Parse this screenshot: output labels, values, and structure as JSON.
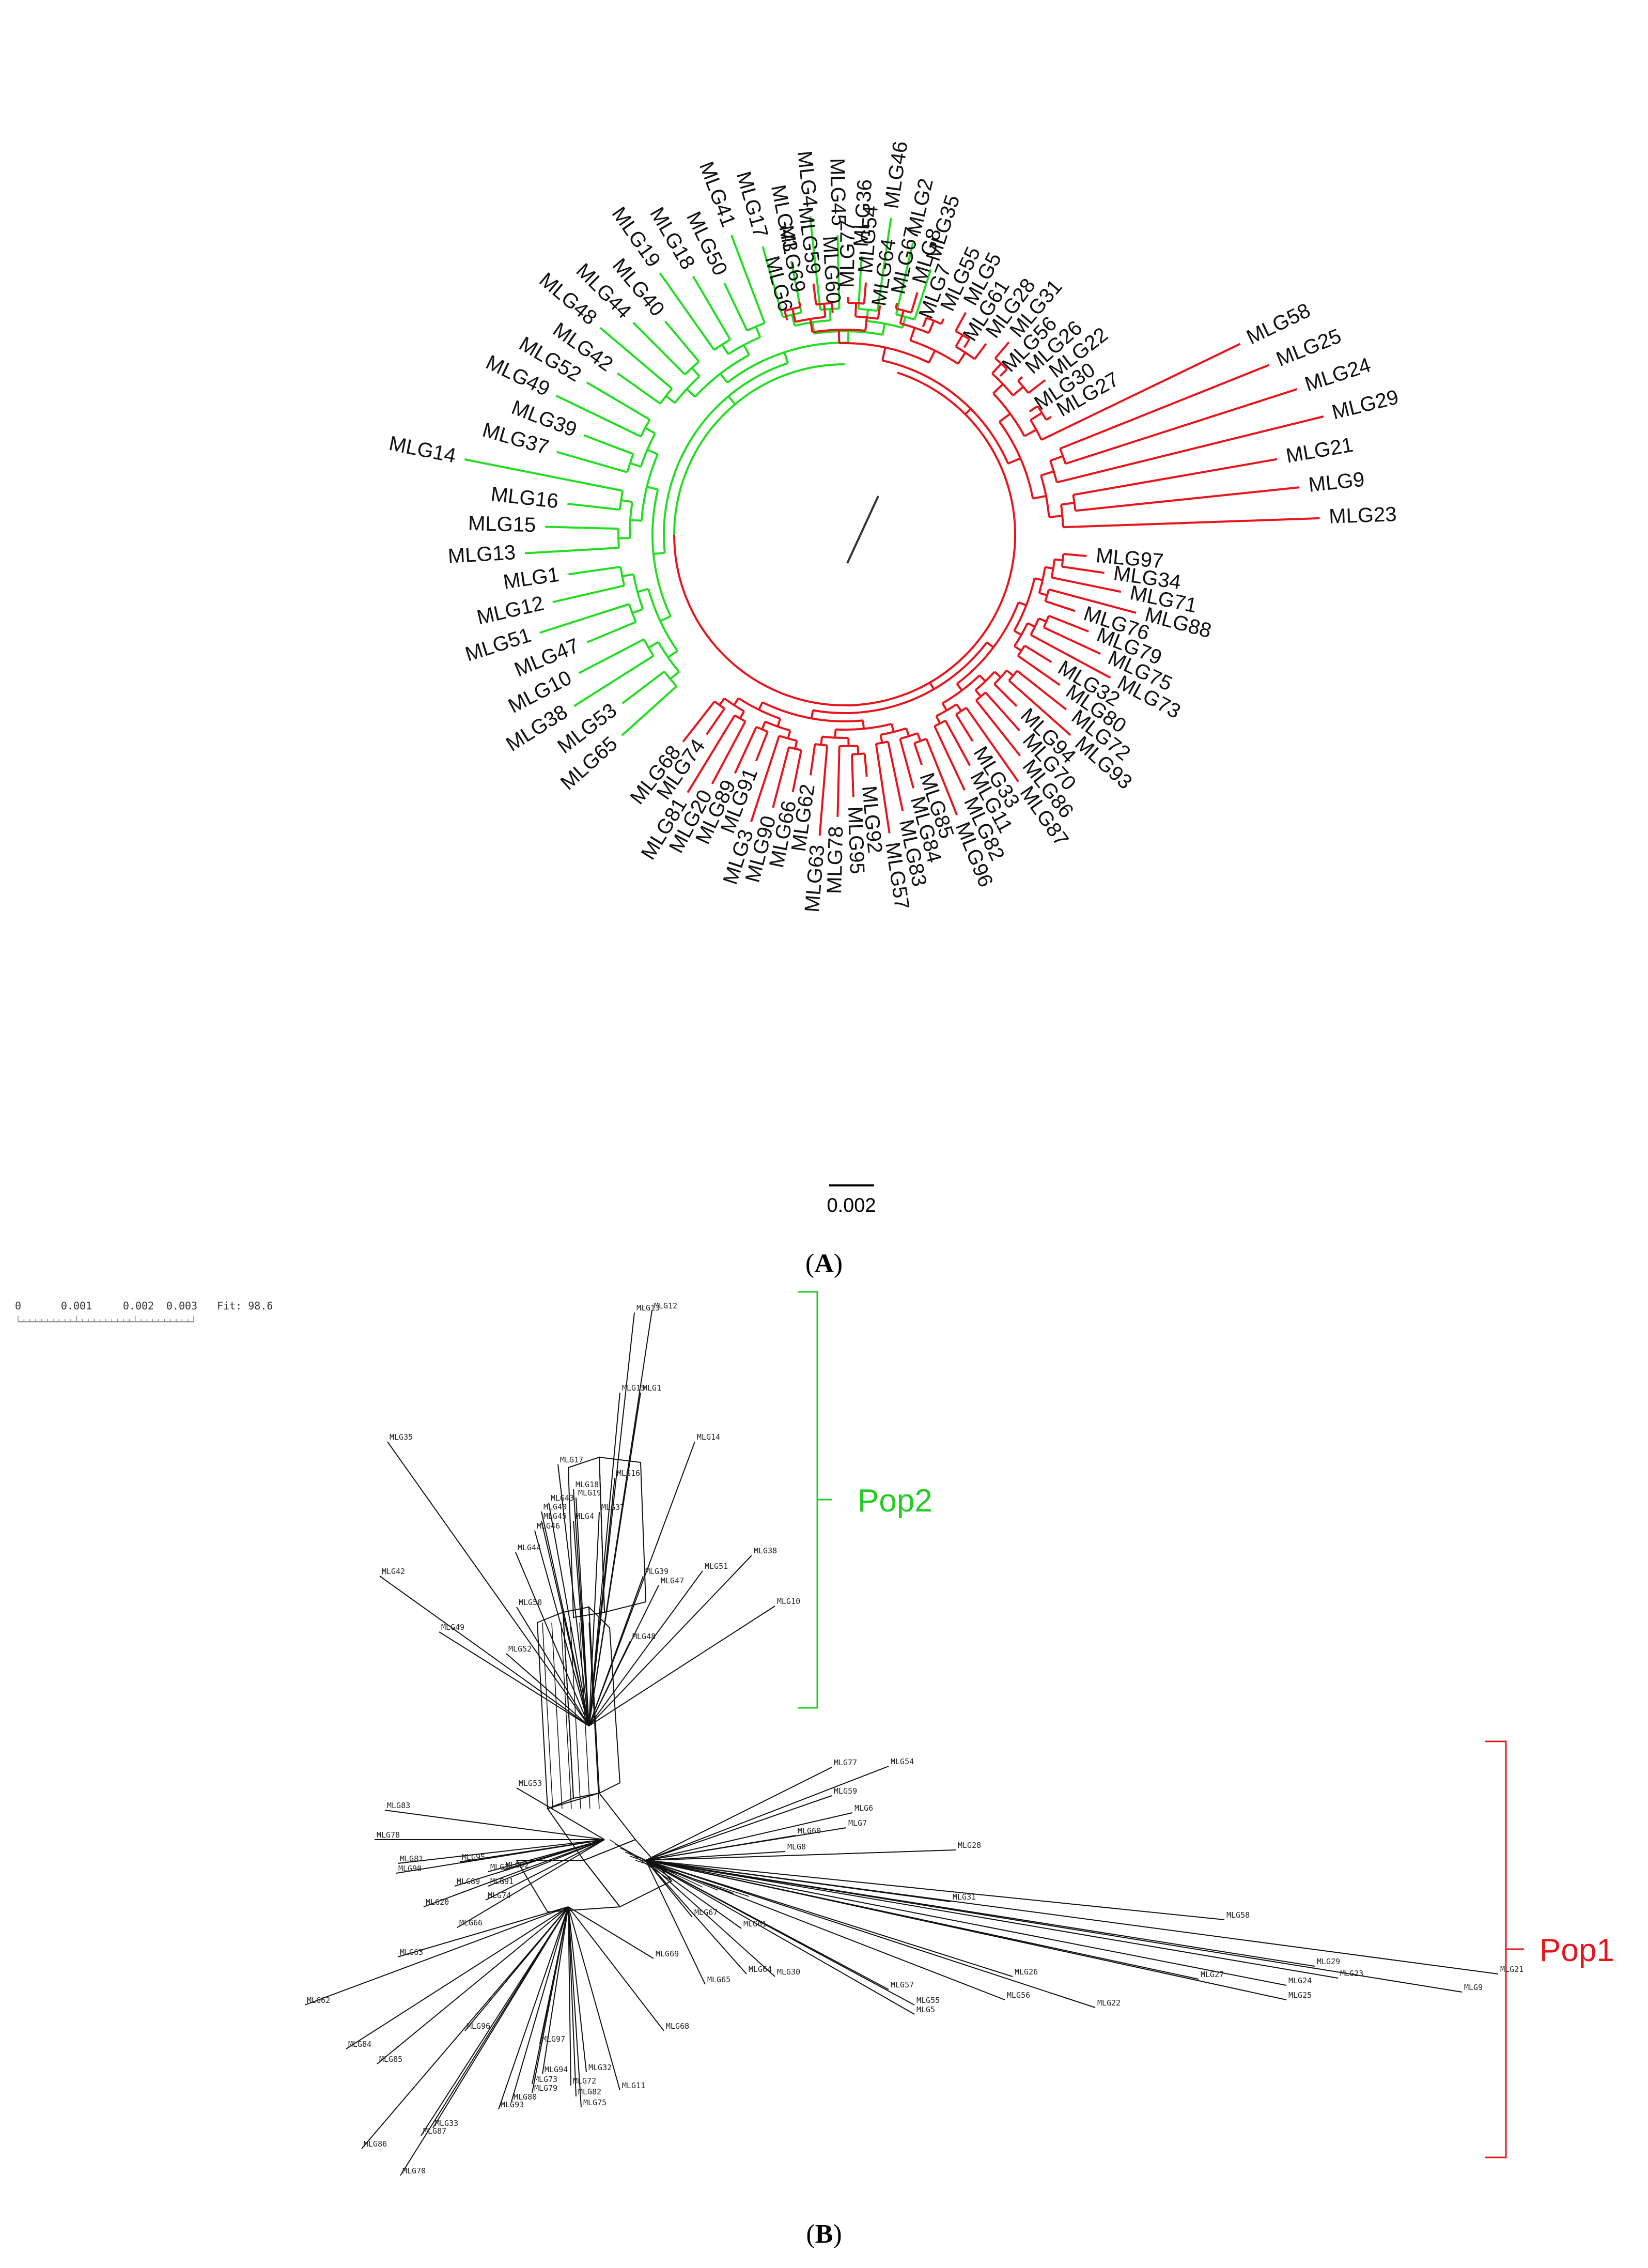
{
  "panel_a": {
    "caption_left": "(",
    "caption_letter": "A",
    "caption_right": ")",
    "scale_label": "0.002",
    "colors": {
      "pop1": "#e8141b",
      "pop2": "#22dd22",
      "root": "#333333"
    },
    "pop2_leaves": [
      "MLG35",
      "MLG2",
      "MLG46",
      "MLG36",
      "MLG45",
      "MLG4",
      "MLG43",
      "MLG17",
      "MLG41",
      "MLG50",
      "MLG18",
      "MLG19",
      "MLG40",
      "MLG44",
      "MLG48",
      "MLG42",
      "MLG52",
      "MLG49",
      "MLG39",
      "MLG37",
      "MLG14",
      "MLG16",
      "MLG15",
      "MLG13",
      "MLG1",
      "MLG12",
      "MLG51",
      "MLG47",
      "MLG10",
      "MLG38",
      "MLG53",
      "MLG65"
    ],
    "pop1_leaves": [
      "MLG6",
      "MLG69",
      "MLG59",
      "MLG60",
      "MLG77",
      "MLG54",
      "MLG64",
      "MLG67",
      "MLG8",
      "MLG7",
      "MLG55",
      "MLG5",
      "MLG61",
      "MLG28",
      "MLG31",
      "MLG56",
      "MLG26",
      "MLG22",
      "MLG30",
      "MLG27",
      "MLG58",
      "MLG25",
      "MLG24",
      "MLG29",
      "MLG21",
      "MLG9",
      "MLG23",
      "MLG97",
      "MLG34",
      "MLG71",
      "MLG88",
      "MLG76",
      "MLG79",
      "MLG75",
      "MLG73",
      "MLG32",
      "MLG80",
      "MLG72",
      "MLG93",
      "MLG94",
      "MLG70",
      "MLG86",
      "MLG87",
      "MLG33",
      "MLG11",
      "MLG82",
      "MLG96",
      "MLG85",
      "MLG84",
      "MLG83",
      "MLG57",
      "MLG92",
      "MLG95",
      "MLG78",
      "MLG63",
      "MLG62",
      "MLG66",
      "MLG90",
      "MLG3",
      "MLG91",
      "MLG89",
      "MLG20",
      "MLG81",
      "MLG74",
      "MLG68"
    ]
  },
  "panel_b": {
    "caption_left": "(",
    "caption_letter": "B",
    "caption_right": ")",
    "scale_ticks": [
      "0",
      "0.001",
      "0.002",
      "0.003"
    ],
    "fit_label": "Fit: 98.6",
    "pop2_label": "Pop2",
    "pop1_label": "Pop1",
    "pop2_color": "#22cc22",
    "pop1_color": "#e8141b",
    "labels": [
      "MLG13",
      "MLG12",
      "MLG15",
      "MLG1",
      "MLG35",
      "MLG14",
      "MLG17",
      "MLG16",
      "MLG18",
      "MLG19",
      "MLG43",
      "MLG40",
      "MLG45",
      "MLG37",
      "MLG46",
      "MLG4",
      "MLG44",
      "MLG38",
      "MLG51",
      "MLG39",
      "MLG47",
      "MLG42",
      "MLG10",
      "MLG50",
      "MLG49",
      "MLG48",
      "MLG52",
      "MLG77",
      "MLG54",
      "MLG53",
      "MLG59",
      "MLG6",
      "MLG7",
      "MLG60",
      "MLG8",
      "MLG28",
      "MLG83",
      "MLG78",
      "MLG81",
      "MLG95",
      "MLG90",
      "MLG3",
      "MLG92",
      "MLG89",
      "MLG91",
      "MLG20",
      "MLG74",
      "MLG31",
      "MLG67",
      "MLG61",
      "MLG66",
      "MLG58",
      "MLG63",
      "MLG69",
      "MLG64",
      "MLG65",
      "MLG30",
      "MLG26",
      "MLG27",
      "MLG29",
      "MLG21",
      "MLG24",
      "MLG23",
      "MLG9",
      "MLG25",
      "MLG57",
      "MLG56",
      "MLG55",
      "MLG22",
      "MLG5",
      "MLG62",
      "MLG68",
      "MLG96",
      "MLG84",
      "MLG85",
      "MLG97",
      "MLG94",
      "MLG32",
      "MLG73",
      "MLG72",
      "MLG11",
      "MLG79",
      "MLG82",
      "MLG80",
      "MLG75",
      "MLG93",
      "MLG33",
      "MLG87",
      "MLG86",
      "MLG70"
    ]
  }
}
